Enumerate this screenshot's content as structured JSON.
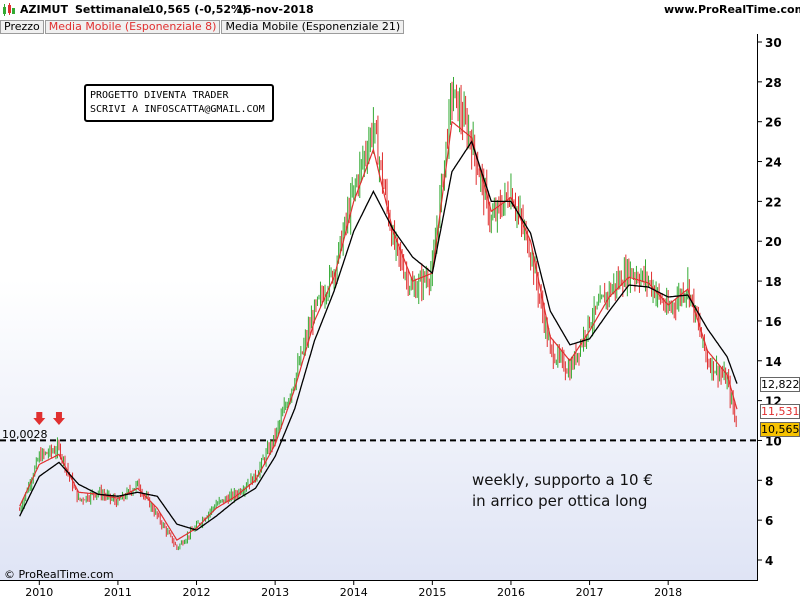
{
  "header": {
    "ticker": "AZIMUT",
    "period": "Settimanale",
    "quote": "10,565 (-0,52%)",
    "date": "16-nov-2018",
    "website": "www.ProRealTime.com"
  },
  "legend": {
    "price": "Prezzo",
    "ema8": "Media Mobile (Esponenziale 8)",
    "ema21": "Media Mobile (Esponenziale 21)"
  },
  "info_box": {
    "line1": "PROGETTO DIVENTA TRADER",
    "line2": "SCRIVI A INFOSCATTA@GMAIL.COM"
  },
  "annotation": {
    "line1": "weekly, supporto a 10 €",
    "line2": "in arrico per ottica long"
  },
  "level_label": "10,0028",
  "badges": {
    "ema21": "12,822",
    "ema8": "11,531",
    "price": "10,565"
  },
  "copyright": "© ProRealTime.com",
  "colors": {
    "bar_up": "#33aa33",
    "bar_down": "#e03030",
    "ema8": "#e03030",
    "ema21": "#000000",
    "arrow": "#e03030",
    "price_badge": "#f6c200"
  },
  "chart_data": {
    "type": "line",
    "title": "AZIMUT Settimanale",
    "ylim": [
      3,
      31
    ],
    "yticks": [
      4,
      6,
      8,
      10,
      12,
      14,
      16,
      18,
      20,
      22,
      24,
      26,
      28,
      30
    ],
    "xticks": [
      "2010",
      "2011",
      "2012",
      "2013",
      "2014",
      "2015",
      "2016",
      "2017",
      "2018"
    ],
    "support_level": 10.0028,
    "markers": [
      {
        "type": "arrow-down",
        "x": 2010.0
      },
      {
        "type": "arrow-down",
        "x": 2010.25
      }
    ],
    "x": [
      2009.75,
      2010.0,
      2010.25,
      2010.5,
      2010.75,
      2011.0,
      2011.25,
      2011.5,
      2011.75,
      2012.0,
      2012.25,
      2012.5,
      2012.75,
      2013.0,
      2013.25,
      2013.5,
      2013.75,
      2014.0,
      2014.25,
      2014.5,
      2014.75,
      2015.0,
      2015.25,
      2015.5,
      2015.75,
      2016.0,
      2016.25,
      2016.5,
      2016.75,
      2017.0,
      2017.25,
      2017.5,
      2017.75,
      2018.0,
      2018.25,
      2018.5,
      2018.75,
      2018.88
    ],
    "series": [
      {
        "name": "Prezzo",
        "values": [
          6.5,
          9.2,
          9.6,
          7.0,
          7.4,
          6.9,
          7.8,
          6.2,
          4.6,
          5.7,
          6.8,
          7.3,
          8.2,
          10.2,
          13.1,
          16.5,
          18.5,
          22.5,
          25.8,
          20.0,
          17.5,
          18.5,
          27.5,
          25.0,
          21.0,
          22.5,
          19.5,
          14.5,
          13.5,
          16.0,
          17.5,
          18.5,
          18.0,
          16.5,
          17.8,
          14.0,
          13.0,
          10.6
        ]
      },
      {
        "name": "Media Mobile (Esponenziale 8)",
        "values": [
          6.7,
          8.8,
          9.3,
          7.4,
          7.3,
          7.1,
          7.6,
          6.6,
          5.0,
          5.6,
          6.6,
          7.2,
          8.0,
          9.8,
          12.6,
          16.0,
          18.2,
          22.0,
          24.6,
          20.5,
          18.0,
          18.4,
          26.0,
          25.2,
          21.5,
          22.2,
          20.0,
          15.2,
          14.0,
          15.5,
          17.2,
          18.2,
          17.9,
          16.8,
          17.6,
          14.5,
          13.3,
          11.5
        ]
      },
      {
        "name": "Media Mobile (Esponenziale 21)",
        "values": [
          6.2,
          8.2,
          8.9,
          7.8,
          7.3,
          7.2,
          7.4,
          7.2,
          5.8,
          5.5,
          6.2,
          7.0,
          7.6,
          9.2,
          11.6,
          15.0,
          17.5,
          20.5,
          22.5,
          20.6,
          19.2,
          18.4,
          23.5,
          25.0,
          22.0,
          22.0,
          20.4,
          16.5,
          14.8,
          15.1,
          16.5,
          17.8,
          17.7,
          17.2,
          17.3,
          15.6,
          14.2,
          12.8
        ]
      }
    ]
  }
}
